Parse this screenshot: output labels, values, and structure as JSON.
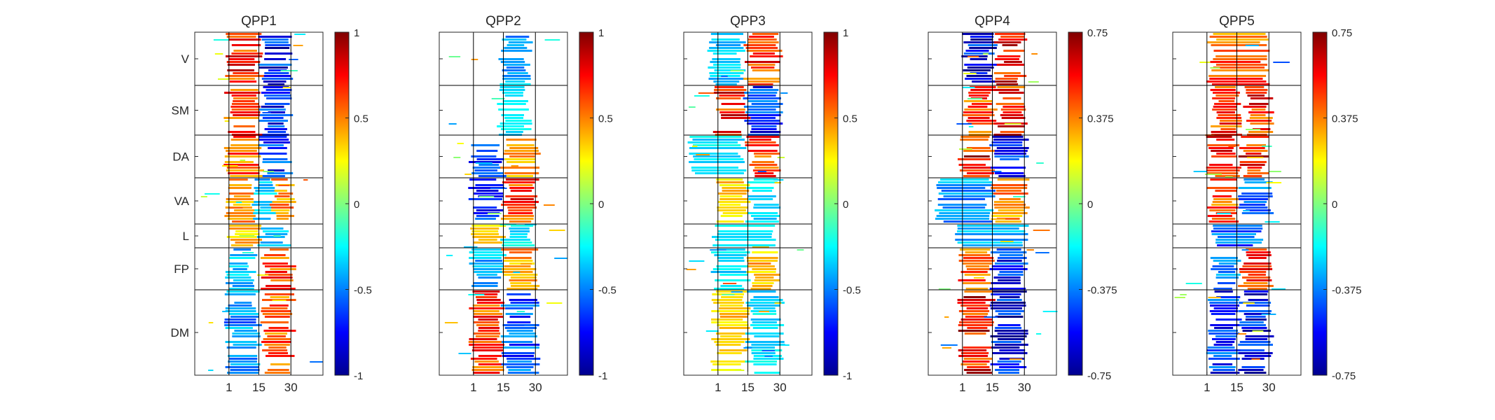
{
  "figure": {
    "panels": [
      {
        "title": "QPP1"
      },
      {
        "title": "QPP2"
      },
      {
        "title": "QPP3"
      },
      {
        "title": "QPP4"
      },
      {
        "title": "QPP5"
      }
    ]
  },
  "chart_data": [
    {
      "type": "heatmap",
      "title": "QPP1",
      "x_ticks": [
        "1",
        "15",
        "30"
      ],
      "x_tick_values": [
        1,
        15,
        30
      ],
      "x_vlines": [
        1,
        15,
        30
      ],
      "xlim": [
        -15,
        45
      ],
      "row_groups": [
        "V",
        "SM",
        "DA",
        "VA",
        "L",
        "FP",
        "DM"
      ],
      "colorbar": {
        "ticks": [
          "1",
          "0.5",
          "0",
          "-0.5",
          "-1"
        ],
        "tick_values": [
          1,
          0.5,
          0,
          -0.5,
          -1
        ],
        "range": [
          -1,
          1
        ],
        "colormap": "jet"
      },
      "bands": [
        {
          "group": "V",
          "start": 1,
          "end": 15,
          "value": 0.8
        },
        {
          "group": "V",
          "start": 17,
          "end": 29,
          "value": -0.85
        },
        {
          "group": "SM",
          "start": 1,
          "end": 15,
          "value": 0.7
        },
        {
          "group": "SM",
          "start": 17,
          "end": 29,
          "value": -0.8
        },
        {
          "group": "DA",
          "start": 1,
          "end": 15,
          "value": 0.65
        },
        {
          "group": "DA",
          "start": 17,
          "end": 29,
          "value": -0.8
        },
        {
          "group": "VA",
          "start": 1,
          "end": 12,
          "value": 0.5
        },
        {
          "group": "VA",
          "start": 14,
          "end": 22,
          "value": -0.45
        },
        {
          "group": "VA",
          "start": 22,
          "end": 30,
          "value": 0.6
        },
        {
          "group": "L",
          "start": 2,
          "end": 14,
          "value": 0.45
        },
        {
          "group": "L",
          "start": 16,
          "end": 28,
          "value": -0.4
        },
        {
          "group": "FP",
          "start": 1,
          "end": 12,
          "value": -0.45
        },
        {
          "group": "FP",
          "start": 18,
          "end": 30,
          "value": 0.7
        },
        {
          "group": "DM",
          "start": 1,
          "end": 14,
          "value": -0.55
        },
        {
          "group": "DM",
          "start": 18,
          "end": 30,
          "value": 0.65
        }
      ]
    },
    {
      "type": "heatmap",
      "title": "QPP2",
      "x_ticks": [
        "1",
        "15",
        "30"
      ],
      "x_tick_values": [
        1,
        15,
        30
      ],
      "x_vlines": [
        1,
        15,
        30
      ],
      "xlim": [
        -15,
        45
      ],
      "row_groups": [
        "V",
        "SM",
        "DA",
        "VA",
        "L",
        "FP",
        "DM"
      ],
      "colorbar": {
        "ticks": [
          "1",
          "0.5",
          "0",
          "-0.5",
          "-1"
        ],
        "tick_values": [
          1,
          0.5,
          0,
          -0.5,
          -1
        ],
        "range": [
          -1,
          1
        ],
        "colormap": "jet"
      },
      "bands": [
        {
          "group": "V",
          "start": 15,
          "end": 27,
          "value": -0.5
        },
        {
          "group": "SM",
          "start": 14,
          "end": 26,
          "value": -0.35
        },
        {
          "group": "DA",
          "start": 1,
          "end": 14,
          "value": -0.7
        },
        {
          "group": "DA",
          "start": 16,
          "end": 30,
          "value": 0.55
        },
        {
          "group": "VA",
          "start": 1,
          "end": 14,
          "value": -0.75
        },
        {
          "group": "VA",
          "start": 16,
          "end": 30,
          "value": 0.75
        },
        {
          "group": "L",
          "start": 1,
          "end": 14,
          "value": 0.35
        },
        {
          "group": "L",
          "start": 16,
          "end": 28,
          "value": -0.35
        },
        {
          "group": "FP",
          "start": 1,
          "end": 14,
          "value": -0.5
        },
        {
          "group": "FP",
          "start": 16,
          "end": 30,
          "value": 0.5
        },
        {
          "group": "DM",
          "start": 1,
          "end": 14,
          "value": 0.75
        },
        {
          "group": "DM",
          "start": 16,
          "end": 30,
          "value": -0.7
        }
      ]
    },
    {
      "type": "heatmap",
      "title": "QPP3",
      "x_ticks": [
        "1",
        "15",
        "30"
      ],
      "x_tick_values": [
        1,
        15,
        30
      ],
      "x_vlines": [
        1,
        15,
        30
      ],
      "xlim": [
        -15,
        45
      ],
      "row_groups": [
        "V",
        "SM",
        "DA",
        "VA",
        "L",
        "FP",
        "DM"
      ],
      "colorbar": {
        "ticks": [
          "1",
          "0.5",
          "0",
          "-0.5",
          "-1"
        ],
        "tick_values": [
          1,
          0.5,
          0,
          -0.5,
          -1
        ],
        "range": [
          -1,
          1
        ],
        "colormap": "jet"
      },
      "bands": [
        {
          "group": "V",
          "start": -2,
          "end": 12,
          "value": -0.4
        },
        {
          "group": "V",
          "start": 15,
          "end": 29,
          "value": 0.75
        },
        {
          "group": "SM",
          "start": 1,
          "end": 14,
          "value": 0.8
        },
        {
          "group": "SM",
          "start": 15,
          "end": 29,
          "value": -0.8
        },
        {
          "group": "DA",
          "start": -12,
          "end": 12,
          "value": -0.35
        },
        {
          "group": "DA",
          "start": 16,
          "end": 28,
          "value": 0.7
        },
        {
          "group": "VA",
          "start": 1,
          "end": 14,
          "value": 0.4
        },
        {
          "group": "VA",
          "start": 16,
          "end": 28,
          "value": -0.4
        },
        {
          "group": "L",
          "start": 0,
          "end": 28,
          "value": -0.3
        },
        {
          "group": "FP",
          "start": 0,
          "end": 14,
          "value": -0.35
        },
        {
          "group": "FP",
          "start": 16,
          "end": 28,
          "value": 0.45
        },
        {
          "group": "DM",
          "start": 0,
          "end": 14,
          "value": 0.4
        },
        {
          "group": "DM",
          "start": 16,
          "end": 30,
          "value": -0.35
        }
      ]
    },
    {
      "type": "heatmap",
      "title": "QPP4",
      "x_ticks": [
        "1",
        "15",
        "30"
      ],
      "x_tick_values": [
        1,
        15,
        30
      ],
      "x_vlines": [
        1,
        15,
        30
      ],
      "xlim": [
        -15,
        45
      ],
      "row_groups": [
        "V",
        "SM",
        "DA",
        "VA",
        "L",
        "FP",
        "DM"
      ],
      "colorbar": {
        "ticks": [
          "0.75",
          "0.375",
          "0",
          "-0.375",
          "-0.75"
        ],
        "tick_values": [
          0.75,
          0.375,
          0,
          -0.375,
          -0.75
        ],
        "range": [
          -0.75,
          0.75
        ],
        "colormap": "jet"
      },
      "bands": [
        {
          "group": "V",
          "start": 3,
          "end": 15,
          "value": -0.65
        },
        {
          "group": "V",
          "start": 18,
          "end": 29,
          "value": 0.65
        },
        {
          "group": "SM",
          "start": 3,
          "end": 15,
          "value": 0.55
        },
        {
          "group": "SM",
          "start": 18,
          "end": 29,
          "value": 0.6
        },
        {
          "group": "DA",
          "start": 1,
          "end": 14,
          "value": 0.7
        },
        {
          "group": "DA",
          "start": 16,
          "end": 30,
          "value": -0.6
        },
        {
          "group": "VA",
          "start": -10,
          "end": 14,
          "value": -0.4
        },
        {
          "group": "VA",
          "start": 16,
          "end": 30,
          "value": 0.4
        },
        {
          "group": "L",
          "start": 0,
          "end": 30,
          "value": -0.35
        },
        {
          "group": "FP",
          "start": 1,
          "end": 14,
          "value": 0.5
        },
        {
          "group": "FP",
          "start": 16,
          "end": 30,
          "value": -0.6
        },
        {
          "group": "DM",
          "start": 1,
          "end": 14,
          "value": 0.65
        },
        {
          "group": "DM",
          "start": 16,
          "end": 30,
          "value": -0.7
        }
      ]
    },
    {
      "type": "heatmap",
      "title": "QPP5",
      "x_ticks": [
        "1",
        "15",
        "30"
      ],
      "x_tick_values": [
        1,
        15,
        30
      ],
      "x_vlines": [
        1,
        15,
        30
      ],
      "xlim": [
        -15,
        45
      ],
      "row_groups": [
        "V",
        "SM",
        "DA",
        "VA",
        "L",
        "FP",
        "DM"
      ],
      "colorbar": {
        "ticks": [
          "0.75",
          "0.375",
          "0",
          "-0.375",
          "-0.75"
        ],
        "tick_values": [
          0.75,
          0.375,
          0,
          -0.375,
          -0.75
        ],
        "range": [
          -0.75,
          0.75
        ],
        "colormap": "jet"
      },
      "bands": [
        {
          "group": "V",
          "start": 3,
          "end": 28,
          "value": 0.5
        },
        {
          "group": "SM",
          "start": 5,
          "end": 15,
          "value": 0.55
        },
        {
          "group": "SM",
          "start": 20,
          "end": 30,
          "value": 0.6
        },
        {
          "group": "DA",
          "start": 3,
          "end": 15,
          "value": 0.6
        },
        {
          "group": "DA",
          "start": 18,
          "end": 28,
          "value": 0.65
        },
        {
          "group": "VA",
          "start": 3,
          "end": 15,
          "value": 0.5
        },
        {
          "group": "VA",
          "start": 18,
          "end": 30,
          "value": -0.45
        },
        {
          "group": "L",
          "start": 5,
          "end": 25,
          "value": -0.5
        },
        {
          "group": "FP",
          "start": 5,
          "end": 15,
          "value": -0.45
        },
        {
          "group": "FP",
          "start": 18,
          "end": 30,
          "value": 0.55
        },
        {
          "group": "DM",
          "start": 3,
          "end": 15,
          "value": -0.6
        },
        {
          "group": "DM",
          "start": 18,
          "end": 30,
          "value": -0.65
        }
      ]
    }
  ]
}
